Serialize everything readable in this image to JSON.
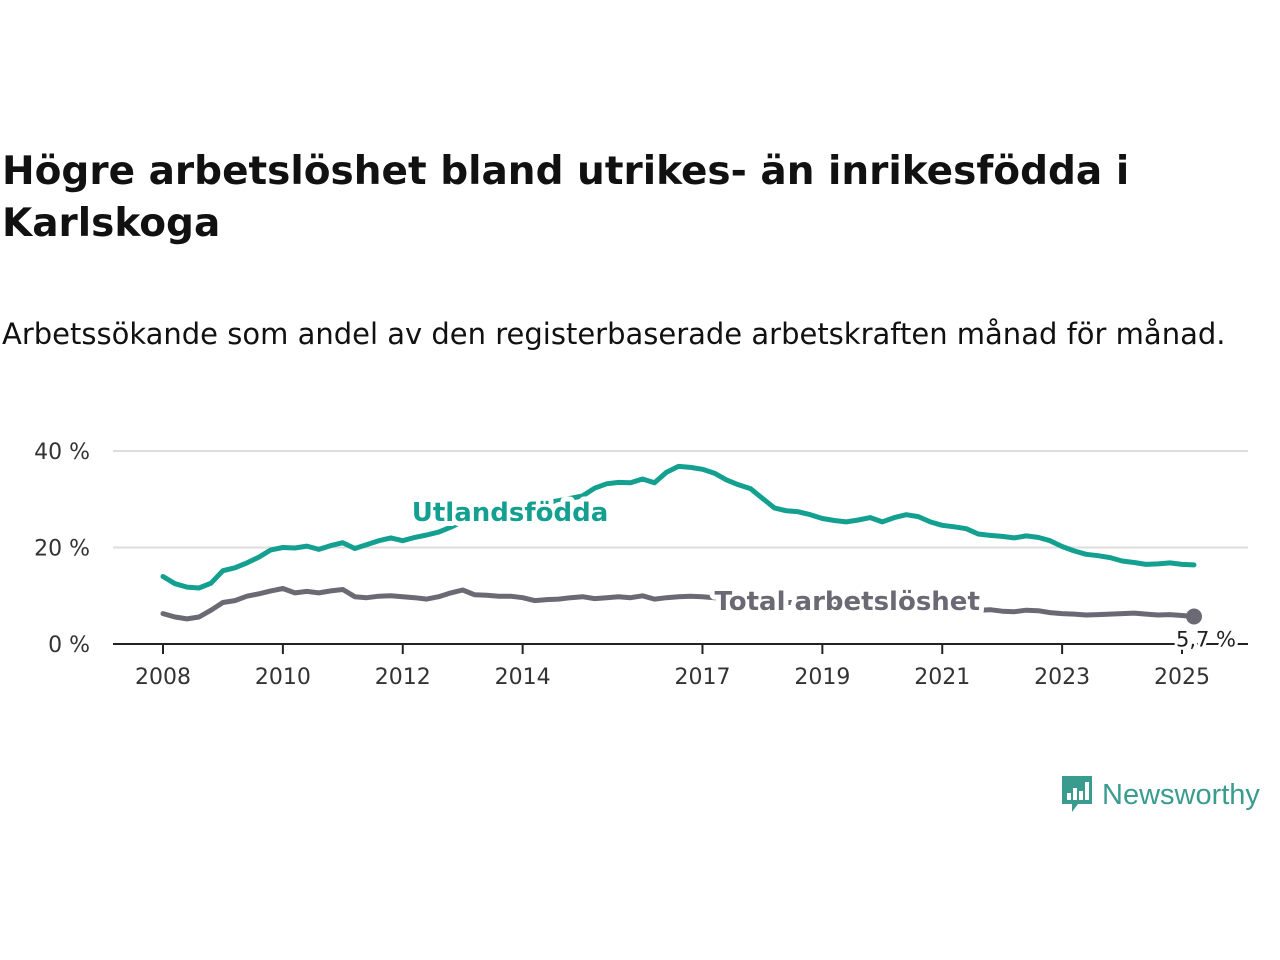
{
  "title": "Högre arbetslöshet bland utrikes- än inrikesfödda i Karlskoga",
  "subtitle": "Arbetssökande som andel av den registerbaserade arbetskraften månad för månad.",
  "brand": {
    "name": "Newsworthy",
    "color": "#3a9b8f",
    "icon": "bar-chart-speech-bubble-icon"
  },
  "chart_data": {
    "type": "line",
    "title": "Högre arbetslöshet bland utrikes- än inrikesfödda i Karlskoga",
    "subtitle": "Arbetssökande som andel av den registerbaserade arbetskraften månad för månad.",
    "xlabel": "",
    "ylabel": "",
    "ylim": [
      0,
      40
    ],
    "xlim": [
      2008,
      2025.6
    ],
    "yticks": [
      0,
      20,
      40
    ],
    "ytick_labels": [
      "0 %",
      "20 %",
      "40 %"
    ],
    "xticks": [
      2008,
      2010,
      2012,
      2014,
      2017,
      2019,
      2021,
      2023,
      2025
    ],
    "xtick_labels": [
      "2008",
      "2010",
      "2012",
      "2014",
      "2017",
      "2019",
      "2021",
      "2023",
      "2025"
    ],
    "grid": "horizontal",
    "legend": "inline labels",
    "end_label": "5,7 %",
    "series": [
      {
        "name": "Utlandsfödda",
        "color": "#14a090",
        "x": [
          2008.0,
          2008.2,
          2008.4,
          2008.6,
          2008.8,
          2009.0,
          2009.2,
          2009.4,
          2009.6,
          2009.8,
          2010.0,
          2010.2,
          2010.4,
          2010.6,
          2010.8,
          2011.0,
          2011.2,
          2011.4,
          2011.6,
          2011.8,
          2012.0,
          2012.2,
          2012.4,
          2012.6,
          2012.8,
          2013.0,
          2013.2,
          2013.4,
          2013.6,
          2013.8,
          2014.0,
          2014.2,
          2014.4,
          2014.6,
          2014.8,
          2015.0,
          2015.2,
          2015.4,
          2015.6,
          2015.8,
          2016.0,
          2016.2,
          2016.4,
          2016.6,
          2016.8,
          2017.0,
          2017.2,
          2017.4,
          2017.6,
          2017.8,
          2018.0,
          2018.2,
          2018.4,
          2018.6,
          2018.8,
          2019.0,
          2019.2,
          2019.4,
          2019.6,
          2019.8,
          2020.0,
          2020.2,
          2020.4,
          2020.6,
          2020.8,
          2021.0,
          2021.2,
          2021.4,
          2021.6,
          2021.8,
          2022.0,
          2022.2,
          2022.4,
          2022.6,
          2022.8,
          2023.0,
          2023.2,
          2023.4,
          2023.6,
          2023.8,
          2024.0,
          2024.2,
          2024.4,
          2024.6,
          2024.8,
          2025.0,
          2025.2
        ],
        "values": [
          14.0,
          12.5,
          11.8,
          11.6,
          12.6,
          15.2,
          15.8,
          16.8,
          18.0,
          19.5,
          20.0,
          19.9,
          20.3,
          19.6,
          20.4,
          21.0,
          19.8,
          20.6,
          21.4,
          22.0,
          21.4,
          22.1,
          22.6,
          23.2,
          24.2,
          25.4,
          26.2,
          26.8,
          27.6,
          28.2,
          28.6,
          28.9,
          29.3,
          29.7,
          30.2,
          30.7,
          32.3,
          33.2,
          33.5,
          33.4,
          34.2,
          33.4,
          35.6,
          36.8,
          36.6,
          36.2,
          35.4,
          34.0,
          33.0,
          32.2,
          30.2,
          28.2,
          27.6,
          27.4,
          26.8,
          26.0,
          25.6,
          25.3,
          25.7,
          26.2,
          25.3,
          26.2,
          26.8,
          26.4,
          25.3,
          24.6,
          24.3,
          23.9,
          22.8,
          22.5,
          22.3,
          22.0,
          22.4,
          22.1,
          21.4,
          20.2,
          19.3,
          18.6,
          18.3,
          17.9,
          17.2,
          16.9,
          16.5,
          16.6,
          16.8,
          16.5,
          16.4
        ]
      },
      {
        "name": "Total arbetslöshet",
        "color": "#6b6a74",
        "x": [
          2008.0,
          2008.2,
          2008.4,
          2008.6,
          2008.8,
          2009.0,
          2009.2,
          2009.4,
          2009.6,
          2009.8,
          2010.0,
          2010.2,
          2010.4,
          2010.6,
          2010.8,
          2011.0,
          2011.2,
          2011.4,
          2011.6,
          2011.8,
          2012.0,
          2012.2,
          2012.4,
          2012.6,
          2012.8,
          2013.0,
          2013.2,
          2013.4,
          2013.6,
          2013.8,
          2014.0,
          2014.2,
          2014.4,
          2014.6,
          2014.8,
          2015.0,
          2015.2,
          2015.4,
          2015.6,
          2015.8,
          2016.0,
          2016.2,
          2016.4,
          2016.6,
          2016.8,
          2017.0,
          2017.2,
          2017.4,
          2017.6,
          2017.8,
          2018.0,
          2018.2,
          2018.4,
          2018.6,
          2018.8,
          2019.0,
          2019.2,
          2019.4,
          2019.6,
          2019.8,
          2020.0,
          2020.2,
          2020.4,
          2020.6,
          2020.8,
          2021.0,
          2021.2,
          2021.4,
          2021.6,
          2021.8,
          2022.0,
          2022.2,
          2022.4,
          2022.6,
          2022.8,
          2023.0,
          2023.2,
          2023.4,
          2023.6,
          2023.8,
          2024.0,
          2024.2,
          2024.4,
          2024.6,
          2024.8,
          2025.0,
          2025.2
        ],
        "values": [
          6.3,
          5.6,
          5.2,
          5.6,
          7.0,
          8.6,
          9.0,
          9.9,
          10.4,
          11.0,
          11.5,
          10.6,
          10.9,
          10.6,
          11.0,
          11.3,
          9.8,
          9.6,
          9.9,
          10.0,
          9.8,
          9.6,
          9.3,
          9.8,
          10.6,
          11.2,
          10.2,
          10.1,
          9.9,
          9.9,
          9.6,
          9.0,
          9.2,
          9.3,
          9.6,
          9.8,
          9.4,
          9.6,
          9.8,
          9.6,
          10.0,
          9.3,
          9.6,
          9.8,
          9.9,
          9.8,
          9.6,
          9.4,
          9.2,
          9.0,
          8.8,
          8.7,
          8.6,
          8.6,
          8.5,
          8.3,
          8.2,
          8.1,
          8.0,
          8.0,
          7.9,
          7.8,
          7.7,
          7.6,
          7.6,
          7.4,
          7.3,
          7.2,
          7.0,
          7.1,
          6.8,
          6.7,
          7.0,
          6.9,
          6.5,
          6.3,
          6.2,
          6.0,
          6.1,
          6.2,
          6.3,
          6.4,
          6.2,
          6.0,
          6.1,
          5.9,
          5.7
        ]
      }
    ]
  }
}
